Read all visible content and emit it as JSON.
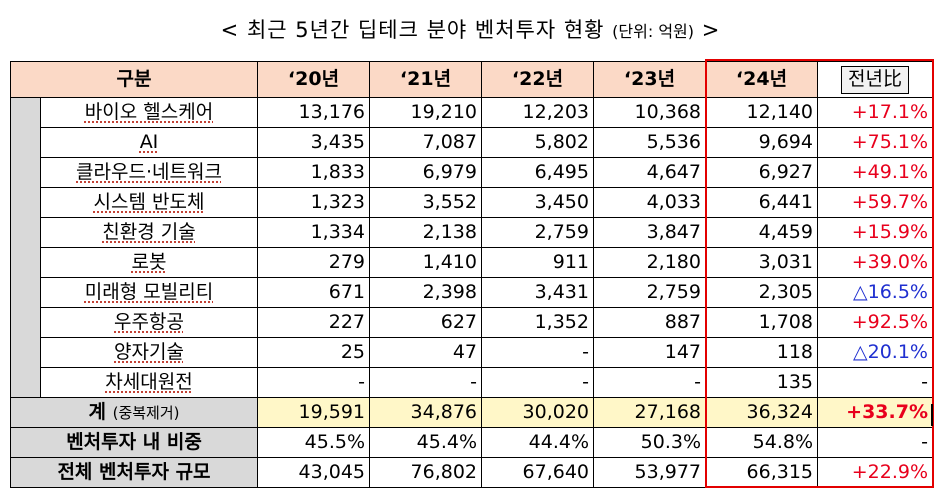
{
  "title": {
    "text": "< 최근 5년간 딥테크 분야 벤처투자 현황",
    "unit": "(단위: 억원)",
    "tail": ">"
  },
  "header": {
    "category": "구분",
    "years": [
      "‘20년",
      "‘21년",
      "‘22년",
      "‘23년",
      "‘24년"
    ],
    "yoy": "전년比"
  },
  "rows": [
    {
      "label": "바이오 헬스케어",
      "values": [
        "13,176",
        "19,210",
        "12,203",
        "10,368",
        "12,140"
      ],
      "yoy": "+17.1%",
      "yoy_dir": "up"
    },
    {
      "label": "AI",
      "values": [
        "3,435",
        "7,087",
        "5,802",
        "5,536",
        "9,694"
      ],
      "yoy": "+75.1%",
      "yoy_dir": "up"
    },
    {
      "label": "클라우드·네트워크",
      "values": [
        "1,833",
        "6,979",
        "6,495",
        "4,647",
        "6,927"
      ],
      "yoy": "+49.1%",
      "yoy_dir": "up"
    },
    {
      "label": "시스템 반도체",
      "values": [
        "1,323",
        "3,552",
        "3,450",
        "4,033",
        "6,441"
      ],
      "yoy": "+59.7%",
      "yoy_dir": "up"
    },
    {
      "label": "친환경 기술",
      "values": [
        "1,334",
        "2,138",
        "2,759",
        "3,847",
        "4,459"
      ],
      "yoy": "+15.9%",
      "yoy_dir": "up"
    },
    {
      "label": "로봇",
      "values": [
        "279",
        "1,410",
        "911",
        "2,180",
        "3,031"
      ],
      "yoy": "+39.0%",
      "yoy_dir": "up"
    },
    {
      "label": "미래형 모빌리티",
      "values": [
        "671",
        "2,398",
        "3,431",
        "2,759",
        "2,305"
      ],
      "yoy": "△16.5%",
      "yoy_dir": "down"
    },
    {
      "label": "우주항공",
      "values": [
        "227",
        "627",
        "1,352",
        "887",
        "1,708"
      ],
      "yoy": "+92.5%",
      "yoy_dir": "up"
    },
    {
      "label": "양자기술",
      "values": [
        "25",
        "47",
        "-",
        "147",
        "118"
      ],
      "yoy": "△20.1%",
      "yoy_dir": "down"
    },
    {
      "label": "차세대원전",
      "values": [
        "-",
        "-",
        "-",
        "-",
        "135"
      ],
      "yoy": "-",
      "yoy_dir": "none"
    }
  ],
  "total": {
    "label": "계",
    "note": "(중복제거)",
    "values": [
      "19,591",
      "34,876",
      "30,020",
      "27,168",
      "36,324"
    ],
    "yoy": "+33.7%"
  },
  "share": {
    "label": "벤처투자 내 비중",
    "values": [
      "45.5%",
      "45.4%",
      "44.4%",
      "50.3%",
      "54.8%"
    ],
    "yoy": "-"
  },
  "overall": {
    "label": "전체 벤처투자 규모",
    "values": [
      "43,045",
      "76,802",
      "67,640",
      "53,977",
      "66,315"
    ],
    "yoy": "+22.9%"
  },
  "colors": {
    "header_bg": "#fbd9c6",
    "total_bg": "#fff7c8",
    "label_bg": "#d9d9d9",
    "increase": "#e8001c",
    "decrease": "#1f2fd0",
    "highlight_border": "#e30000"
  }
}
